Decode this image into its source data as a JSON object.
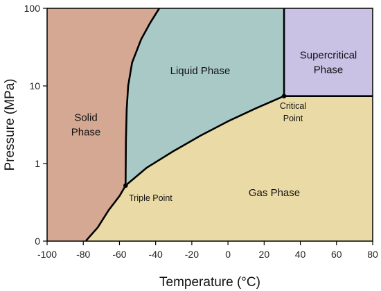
{
  "chart_data": {
    "type": "phase_diagram",
    "xlabel": "Temperature (°C)",
    "ylabel": "Pressure (MPa)",
    "xlim": [
      -100,
      80
    ],
    "x_ticks": [
      -100,
      -80,
      -60,
      -40,
      -20,
      0,
      20,
      40,
      60,
      80
    ],
    "x_tick_labels": [
      "-100",
      "-80",
      "-60",
      "-40",
      "-20",
      "0",
      "20",
      "40",
      "60",
      "80"
    ],
    "y_scale": "log",
    "y_ticks": [
      "0",
      "1",
      "10",
      "100"
    ],
    "grid": false,
    "colors": {
      "solid": "#d4a893",
      "liquid": "#a8c9c6",
      "gas": "#eadba6",
      "supercritical": "#c9c2e5",
      "boundary": "#000000"
    },
    "regions": [
      {
        "label_lines": [
          "Solid",
          "Phase"
        ]
      },
      {
        "label_lines": [
          "Liquid Phase"
        ]
      },
      {
        "label_lines": [
          "Supercritical",
          "Phase"
        ]
      },
      {
        "label_lines": [
          "Gas Phase"
        ]
      }
    ],
    "triple_point": {
      "label": "Triple Point",
      "temperature": -56.6,
      "pressure": 0.52
    },
    "critical_point": {
      "label_lines": [
        "Critical",
        "Point"
      ],
      "temperature": 31,
      "pressure": 7.4
    }
  }
}
